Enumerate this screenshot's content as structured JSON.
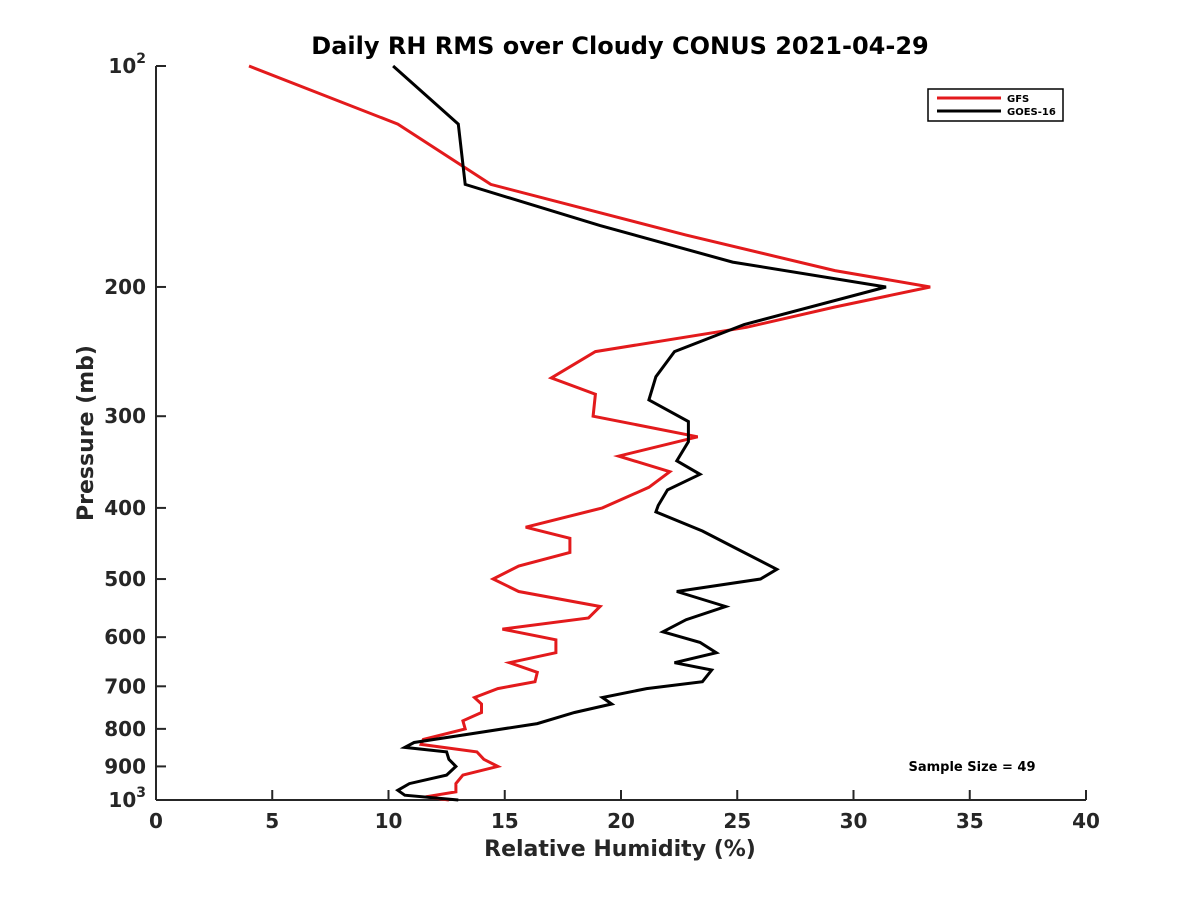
{
  "chart_data": {
    "type": "line",
    "title": "Daily RH RMS over Cloudy CONUS 2021-04-29",
    "xlabel": "Relative Humidity (%)",
    "ylabel": "Pressure (mb)",
    "xlim": [
      0,
      40
    ],
    "ylim": [
      100,
      1000
    ],
    "y_scale": "log",
    "y_reversed": true,
    "x_ticks": [
      0,
      5,
      10,
      15,
      20,
      25,
      30,
      35,
      40
    ],
    "x_tick_labels": [
      "0",
      "5",
      "10",
      "15",
      "20",
      "25",
      "30",
      "35",
      "40"
    ],
    "y_ticks": [
      100,
      200,
      300,
      400,
      500,
      600,
      700,
      800,
      900,
      1000
    ],
    "y_tick_labels": [
      {
        "base": "10",
        "exp": "2"
      },
      {
        "base": "200",
        "exp": ""
      },
      {
        "base": "300",
        "exp": ""
      },
      {
        "base": "400",
        "exp": ""
      },
      {
        "base": "500",
        "exp": ""
      },
      {
        "base": "600",
        "exp": ""
      },
      {
        "base": "700",
        "exp": ""
      },
      {
        "base": "800",
        "exp": ""
      },
      {
        "base": "900",
        "exp": ""
      },
      {
        "base": "10",
        "exp": "3"
      }
    ],
    "grid": false,
    "legend_position": "top-right",
    "annotation": "Sample Size = 49",
    "series": [
      {
        "name": "GFS",
        "color": "#e31a1c",
        "points": [
          [
            4.0,
            100
          ],
          [
            10.4,
            120
          ],
          [
            14.4,
            145
          ],
          [
            22.8,
            170
          ],
          [
            29.2,
            190
          ],
          [
            33.3,
            200
          ],
          [
            29.2,
            213
          ],
          [
            25.4,
            227
          ],
          [
            18.9,
            245
          ],
          [
            17.0,
            266
          ],
          [
            18.9,
            280
          ],
          [
            18.8,
            300
          ],
          [
            23.3,
            320
          ],
          [
            19.9,
            340
          ],
          [
            22.1,
            357
          ],
          [
            21.2,
            375
          ],
          [
            19.2,
            400
          ],
          [
            15.9,
            425
          ],
          [
            17.8,
            440
          ],
          [
            17.8,
            460
          ],
          [
            15.6,
            480
          ],
          [
            14.5,
            500
          ],
          [
            15.6,
            520
          ],
          [
            19.1,
            545
          ],
          [
            18.6,
            565
          ],
          [
            14.9,
            585
          ],
          [
            17.2,
            605
          ],
          [
            17.2,
            630
          ],
          [
            15.2,
            650
          ],
          [
            16.4,
            670
          ],
          [
            16.3,
            690
          ],
          [
            14.7,
            705
          ],
          [
            13.7,
            725
          ],
          [
            14.0,
            740
          ],
          [
            14.0,
            760
          ],
          [
            13.2,
            780
          ],
          [
            13.3,
            800
          ],
          [
            11.5,
            827
          ],
          [
            11.4,
            840
          ],
          [
            13.8,
            860
          ],
          [
            14.1,
            880
          ],
          [
            14.7,
            900
          ],
          [
            13.2,
            925
          ],
          [
            12.9,
            950
          ],
          [
            12.9,
            975
          ],
          [
            11.6,
            990
          ],
          [
            12.6,
            1000
          ]
        ]
      },
      {
        "name": "GOES-16",
        "color": "#000000",
        "points": [
          [
            10.2,
            100
          ],
          [
            13.0,
            120
          ],
          [
            13.3,
            145
          ],
          [
            19.1,
            165
          ],
          [
            24.8,
            185
          ],
          [
            31.4,
            200
          ],
          [
            25.3,
            225
          ],
          [
            22.3,
            245
          ],
          [
            21.5,
            265
          ],
          [
            21.2,
            285
          ],
          [
            22.9,
            305
          ],
          [
            22.9,
            325
          ],
          [
            22.4,
            345
          ],
          [
            23.4,
            360
          ],
          [
            22.0,
            378
          ],
          [
            21.6,
            397
          ],
          [
            21.5,
            405
          ],
          [
            23.5,
            430
          ],
          [
            25.0,
            455
          ],
          [
            26.7,
            485
          ],
          [
            26.0,
            500
          ],
          [
            22.4,
            520
          ],
          [
            24.5,
            545
          ],
          [
            22.8,
            568
          ],
          [
            21.8,
            590
          ],
          [
            23.4,
            610
          ],
          [
            24.1,
            630
          ],
          [
            22.3,
            650
          ],
          [
            23.9,
            665
          ],
          [
            23.5,
            690
          ],
          [
            21.1,
            705
          ],
          [
            19.2,
            725
          ],
          [
            19.6,
            740
          ],
          [
            18.0,
            760
          ],
          [
            16.4,
            787
          ],
          [
            13.6,
            812
          ],
          [
            11.1,
            835
          ],
          [
            10.7,
            848
          ],
          [
            12.5,
            860
          ],
          [
            12.6,
            880
          ],
          [
            12.9,
            900
          ],
          [
            12.5,
            925
          ],
          [
            10.9,
            950
          ],
          [
            10.4,
            970
          ],
          [
            10.7,
            985
          ],
          [
            13.0,
            1000
          ]
        ]
      }
    ]
  }
}
